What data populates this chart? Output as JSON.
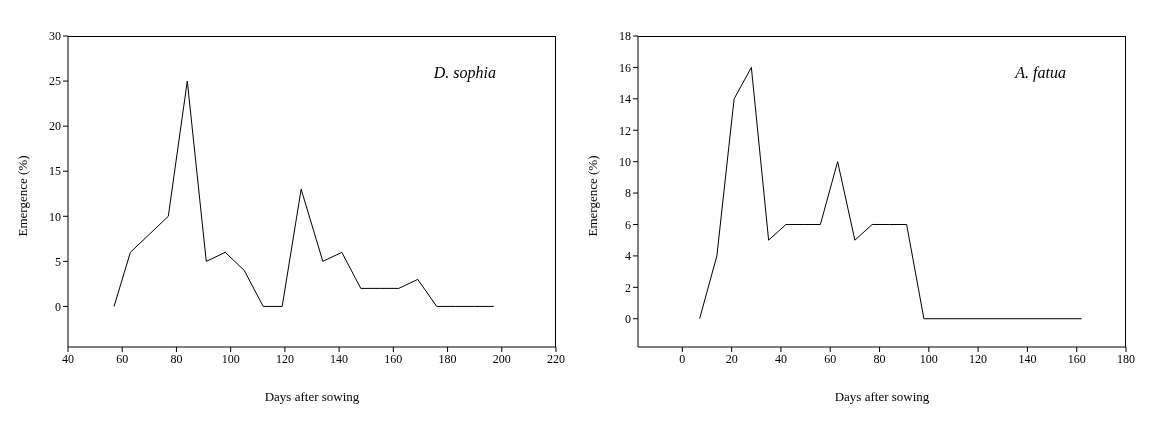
{
  "chart_data": [
    {
      "type": "line",
      "xlabel": "Days after sowing",
      "ylabel": "Emergence (%)",
      "annotations": [
        "D. sophia"
      ],
      "x": [
        57,
        63,
        70,
        77,
        84,
        91,
        98,
        105,
        112,
        119,
        126,
        134,
        141,
        148,
        155,
        162,
        169,
        176,
        183,
        190,
        197
      ],
      "series": [
        {
          "color": "#000000",
          "values": [
            0,
            6,
            8,
            10,
            25,
            5,
            6,
            4,
            0,
            0,
            13,
            5,
            6,
            2,
            2,
            2,
            3,
            0,
            0,
            0,
            0
          ]
        }
      ],
      "xlim": [
        40,
        220
      ],
      "xticks": [
        40,
        60,
        80,
        100,
        120,
        140,
        160,
        180,
        200,
        220
      ],
      "ylim": [
        -4.5,
        30
      ],
      "yticks": [
        0,
        5,
        10,
        15,
        20,
        25,
        30
      ],
      "grid": false,
      "legend": false,
      "marker": "none",
      "line_style": "solid"
    },
    {
      "type": "line",
      "xlabel": "Days after sowing",
      "ylabel": "Emergence (%)",
      "annotations": [
        "A. fatua"
      ],
      "x": [
        7,
        14,
        21,
        28,
        35,
        42,
        49,
        56,
        63,
        70,
        77,
        84,
        91,
        98,
        162
      ],
      "series": [
        {
          "color": "#000000",
          "values": [
            0,
            4,
            14,
            16,
            5,
            6,
            6,
            6,
            10,
            5,
            6,
            6,
            6,
            0,
            0
          ]
        }
      ],
      "xlim": [
        -18,
        180
      ],
      "xticks": [
        0,
        20,
        40,
        60,
        80,
        100,
        120,
        140,
        160,
        180
      ],
      "ylim": [
        -1.8,
        18
      ],
      "yticks": [
        0,
        2,
        4,
        6,
        8,
        10,
        12,
        14,
        16,
        18
      ],
      "grid": false,
      "legend": false,
      "marker": "none",
      "line_style": "solid"
    }
  ]
}
